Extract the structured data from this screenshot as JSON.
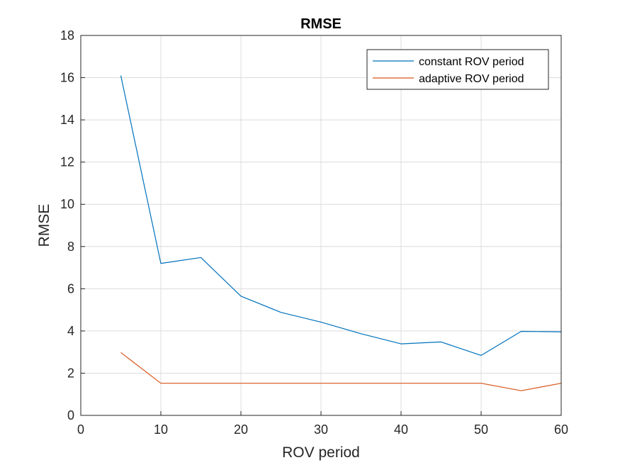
{
  "chart_data": {
    "type": "line",
    "title": "RMSE",
    "xlabel": "ROV period",
    "ylabel": "RMSE",
    "xlim": [
      0,
      60
    ],
    "ylim": [
      0,
      18
    ],
    "xticks": [
      0,
      10,
      20,
      30,
      40,
      50,
      60
    ],
    "yticks": [
      0,
      2,
      4,
      6,
      8,
      10,
      12,
      14,
      16,
      18
    ],
    "grid": true,
    "legend_position": "top-right",
    "x": [
      5,
      10,
      15,
      20,
      25,
      30,
      35,
      40,
      45,
      50,
      55,
      60
    ],
    "series": [
      {
        "name": "constant ROV period",
        "color": "#0072BD",
        "values": [
          16.1,
          7.2,
          7.48,
          5.65,
          4.88,
          4.42,
          3.87,
          3.39,
          3.48,
          2.84,
          3.98,
          3.96
        ]
      },
      {
        "name": "adaptive ROV period",
        "color": "#D95319",
        "values": [
          2.98,
          1.52,
          1.52,
          1.52,
          1.52,
          1.52,
          1.52,
          1.52,
          1.52,
          1.52,
          1.17,
          1.52
        ]
      }
    ]
  }
}
